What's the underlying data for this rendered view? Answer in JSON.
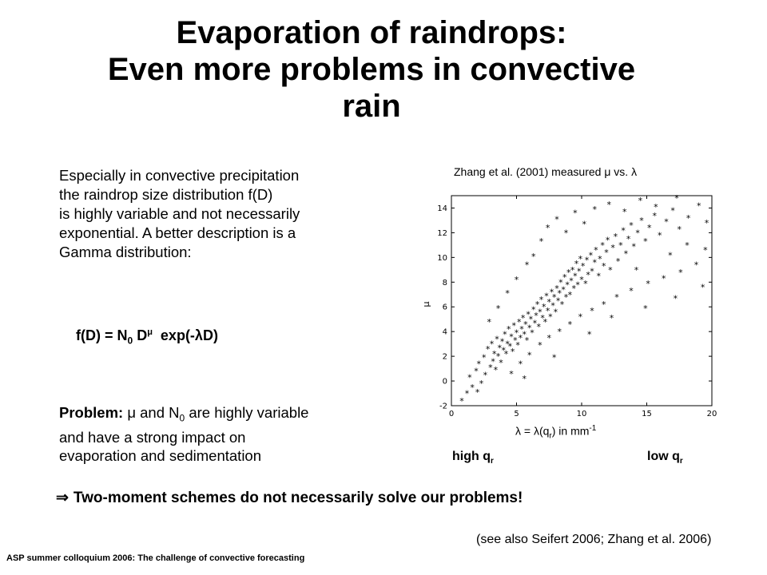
{
  "slide": {
    "title_line1": "Evaporation of raindrops:",
    "title_line2": "Even more problems in convective",
    "title_line3": "rain",
    "intro": [
      "Especially in convective precipitation",
      "the raindrop size distribution f(D)",
      "is highly variable and not necessarily",
      "exponential. A better description is a",
      "Gamma distribution:"
    ],
    "formula": {
      "lhs": "f(D) = N",
      "n_sub": "0",
      "d": " D",
      "mu_sup": "μ",
      "rhs": "  exp(-λD)"
    },
    "problem": {
      "bold_label": "Problem:",
      "text1": " μ and N",
      "sub": "0",
      "text2": " are highly variable",
      "line2": "and have a strong impact on",
      "line3": "evaporation and sedimentation"
    },
    "conclusion": {
      "arrow": "⇒",
      "text": "Two-moment schemes do not necessarily solve our problems!"
    },
    "citation": "(see also Seifert 2006; Zhang et al. 2006)",
    "footer": "ASP summer colloquium 2006: The challenge of convective forecasting"
  },
  "chart_labels": {
    "title": "Zhang et al. (2001) measured μ vs. λ",
    "xlabel_pre": "λ = λ(q",
    "xlabel_sub": "r",
    "xlabel_mid": ") in mm",
    "xlabel_sup": "-1",
    "ylabel": "μ",
    "high_q": "high q",
    "low_q": "low q",
    "q_sub": "r"
  },
  "chart_data": {
    "type": "scatter",
    "title": "Zhang et al. (2001) measured μ vs. λ",
    "xlabel": "λ = λ(qr) in mm-1",
    "ylabel": "μ",
    "xlim": [
      0,
      20
    ],
    "ylim": [
      -2,
      15
    ],
    "xticks": [
      0,
      5,
      10,
      15,
      20
    ],
    "yticks": [
      -2,
      0,
      2,
      4,
      6,
      8,
      10,
      12,
      14
    ],
    "grid": false,
    "marker": "*",
    "points": [
      [
        1.2,
        -1.0
      ],
      [
        1.6,
        -0.5
      ],
      [
        1.9,
        0.8
      ],
      [
        2.1,
        1.4
      ],
      [
        2.3,
        -0.2
      ],
      [
        2.5,
        1.9
      ],
      [
        2.6,
        0.5
      ],
      [
        2.8,
        2.6
      ],
      [
        3.0,
        1.1
      ],
      [
        3.1,
        3.0
      ],
      [
        3.2,
        1.6
      ],
      [
        3.3,
        2.2
      ],
      [
        3.4,
        0.9
      ],
      [
        3.5,
        3.4
      ],
      [
        3.6,
        2.0
      ],
      [
        3.7,
        2.7
      ],
      [
        3.8,
        1.5
      ],
      [
        3.9,
        3.2
      ],
      [
        4.0,
        2.5
      ],
      [
        4.1,
        3.8
      ],
      [
        4.2,
        2.2
      ],
      [
        4.3,
        3.0
      ],
      [
        4.4,
        4.2
      ],
      [
        4.5,
        2.8
      ],
      [
        4.6,
        3.6
      ],
      [
        4.7,
        2.4
      ],
      [
        4.8,
        4.5
      ],
      [
        4.9,
        3.3
      ],
      [
        5.0,
        3.9
      ],
      [
        5.1,
        2.9
      ],
      [
        5.2,
        4.8
      ],
      [
        5.3,
        3.5
      ],
      [
        5.4,
        4.2
      ],
      [
        5.5,
        5.1
      ],
      [
        5.6,
        3.8
      ],
      [
        5.7,
        4.6
      ],
      [
        5.8,
        3.3
      ],
      [
        5.9,
        5.4
      ],
      [
        6.0,
        4.3
      ],
      [
        6.1,
        5.0
      ],
      [
        6.2,
        3.9
      ],
      [
        6.3,
        5.8
      ],
      [
        6.4,
        4.7
      ],
      [
        6.5,
        5.3
      ],
      [
        6.6,
        6.2
      ],
      [
        6.7,
        4.4
      ],
      [
        6.8,
        5.6
      ],
      [
        6.9,
        6.6
      ],
      [
        7.0,
        5.1
      ],
      [
        7.1,
        6.0
      ],
      [
        7.2,
        4.8
      ],
      [
        7.3,
        6.9
      ],
      [
        7.4,
        5.7
      ],
      [
        7.5,
        6.4
      ],
      [
        7.6,
        5.2
      ],
      [
        7.7,
        7.2
      ],
      [
        7.8,
        6.1
      ],
      [
        7.9,
        6.8
      ],
      [
        8.0,
        5.6
      ],
      [
        8.1,
        7.5
      ],
      [
        8.2,
        6.5
      ],
      [
        8.3,
        7.1
      ],
      [
        8.4,
        8.0
      ],
      [
        8.5,
        6.2
      ],
      [
        8.6,
        7.4
      ],
      [
        8.7,
        8.4
      ],
      [
        8.8,
        6.8
      ],
      [
        8.9,
        7.8
      ],
      [
        9.0,
        8.8
      ],
      [
        9.1,
        7.0
      ],
      [
        9.2,
        8.1
      ],
      [
        9.3,
        9.0
      ],
      [
        9.4,
        7.5
      ],
      [
        9.5,
        8.5
      ],
      [
        9.6,
        9.5
      ],
      [
        9.7,
        7.8
      ],
      [
        9.8,
        8.9
      ],
      [
        9.9,
        9.9
      ],
      [
        10.0,
        8.2
      ],
      [
        10.1,
        9.3
      ],
      [
        10.3,
        7.9
      ],
      [
        10.4,
        9.8
      ],
      [
        10.5,
        8.6
      ],
      [
        10.7,
        10.2
      ],
      [
        10.8,
        8.9
      ],
      [
        11.0,
        9.6
      ],
      [
        11.1,
        10.6
      ],
      [
        11.3,
        8.5
      ],
      [
        11.4,
        9.9
      ],
      [
        11.6,
        11.0
      ],
      [
        11.7,
        9.3
      ],
      [
        11.9,
        10.4
      ],
      [
        12.0,
        11.4
      ],
      [
        12.2,
        9.0
      ],
      [
        12.4,
        10.8
      ],
      [
        12.6,
        11.7
      ],
      [
        12.8,
        9.7
      ],
      [
        13.0,
        11.0
      ],
      [
        13.2,
        12.2
      ],
      [
        13.4,
        10.3
      ],
      [
        13.6,
        11.5
      ],
      [
        13.8,
        12.6
      ],
      [
        14.0,
        10.9
      ],
      [
        14.3,
        12.0
      ],
      [
        14.6,
        13.0
      ],
      [
        14.9,
        11.3
      ],
      [
        15.2,
        12.4
      ],
      [
        15.6,
        13.4
      ],
      [
        16.0,
        11.8
      ],
      [
        16.5,
        12.9
      ],
      [
        17.0,
        13.8
      ],
      [
        17.5,
        12.3
      ],
      [
        18.2,
        13.2
      ],
      [
        19.0,
        14.2
      ],
      [
        19.6,
        12.8
      ],
      [
        2.9,
        4.8
      ],
      [
        3.6,
        5.9
      ],
      [
        4.3,
        7.1
      ],
      [
        5.0,
        8.2
      ],
      [
        5.8,
        9.4
      ],
      [
        6.3,
        10.1
      ],
      [
        6.9,
        11.3
      ],
      [
        7.4,
        12.4
      ],
      [
        8.1,
        13.1
      ],
      [
        8.8,
        12.0
      ],
      [
        9.5,
        13.6
      ],
      [
        10.2,
        12.7
      ],
      [
        11.0,
        13.9
      ],
      [
        12.1,
        14.3
      ],
      [
        13.3,
        13.7
      ],
      [
        14.5,
        14.6
      ],
      [
        15.7,
        14.1
      ],
      [
        17.3,
        14.8
      ],
      [
        4.6,
        0.6
      ],
      [
        5.3,
        1.4
      ],
      [
        6.0,
        2.1
      ],
      [
        6.8,
        2.9
      ],
      [
        7.5,
        3.5
      ],
      [
        8.3,
        4.0
      ],
      [
        9.1,
        4.6
      ],
      [
        9.9,
        5.2
      ],
      [
        10.8,
        5.7
      ],
      [
        11.7,
        6.2
      ],
      [
        12.7,
        6.8
      ],
      [
        13.8,
        7.3
      ],
      [
        15.1,
        7.9
      ],
      [
        16.3,
        8.3
      ],
      [
        17.6,
        8.8
      ],
      [
        18.8,
        9.4
      ],
      [
        19.5,
        10.6
      ],
      [
        14.2,
        9.0
      ],
      [
        16.8,
        10.2
      ],
      [
        18.1,
        11.0
      ],
      [
        0.8,
        -1.6
      ],
      [
        1.4,
        0.3
      ],
      [
        2.0,
        -0.9
      ],
      [
        5.6,
        0.2
      ],
      [
        7.9,
        1.9
      ],
      [
        10.6,
        3.8
      ],
      [
        12.3,
        5.1
      ],
      [
        14.9,
        5.9
      ],
      [
        17.2,
        6.7
      ],
      [
        19.3,
        7.6
      ]
    ]
  }
}
